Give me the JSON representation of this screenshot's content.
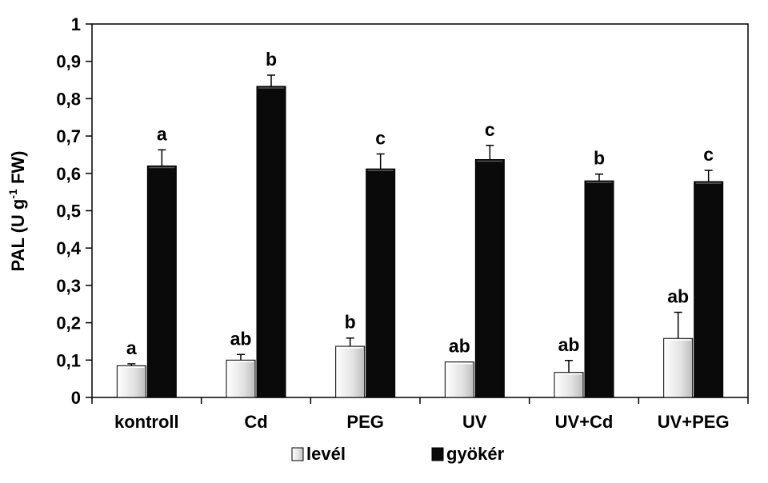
{
  "chart_data": {
    "type": "bar",
    "ylabel": {
      "main": "PAL (U g",
      "sup": "-1",
      "tail": " FW)"
    },
    "ylim": [
      0,
      1
    ],
    "yticks": [
      "0",
      "0,1",
      "0,2",
      "0,3",
      "0,4",
      "0,5",
      "0,6",
      "0,7",
      "0,8",
      "0,9",
      "1"
    ],
    "categories": [
      "kontroll",
      "Cd",
      "PEG",
      "UV",
      "UV+Cd",
      "UV+PEG"
    ],
    "series": [
      {
        "name": "levél",
        "color": "#e2e2e2",
        "values": [
          0.085,
          0.1,
          0.137,
          0.095,
          0.067,
          0.158
        ],
        "errors": [
          0.005,
          0.015,
          0.022,
          0.0,
          0.032,
          0.07
        ],
        "labels": [
          "a",
          "ab",
          "b",
          "ab",
          "ab",
          "ab"
        ]
      },
      {
        "name": "gyökér",
        "color": "#0a0a0a",
        "values": [
          0.62,
          0.833,
          0.612,
          0.637,
          0.58,
          0.578
        ],
        "errors": [
          0.043,
          0.03,
          0.04,
          0.038,
          0.018,
          0.03
        ],
        "labels": [
          "a",
          "b",
          "c",
          "c",
          "b",
          "c"
        ]
      }
    ],
    "legend": {
      "position": "bottom"
    },
    "grid": false
  }
}
